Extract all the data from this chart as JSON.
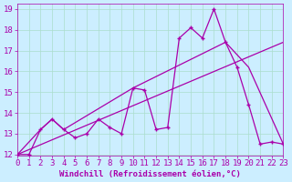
{
  "background_color": "#cceeff",
  "line_color": "#aa00aa",
  "xlabel": "Windchill (Refroidissement éolien,°C)",
  "xlabel_color": "#aa00aa",
  "xmin": 0,
  "xmax": 23,
  "ymin": 12,
  "ymax": 19,
  "yticks": [
    12,
    13,
    14,
    15,
    16,
    17,
    18,
    19
  ],
  "xticks": [
    0,
    1,
    2,
    3,
    4,
    5,
    6,
    7,
    8,
    9,
    10,
    11,
    12,
    13,
    14,
    15,
    16,
    17,
    18,
    19,
    20,
    21,
    22,
    23
  ],
  "line1_x": [
    0,
    1,
    2,
    3,
    4,
    5,
    6,
    7,
    8,
    9,
    10,
    11,
    12,
    13,
    14,
    15,
    16,
    17,
    18,
    19,
    20,
    21,
    22,
    23
  ],
  "line1_y": [
    12.0,
    12.0,
    13.2,
    13.7,
    13.2,
    12.8,
    13.0,
    13.7,
    13.3,
    13.0,
    15.2,
    15.1,
    13.2,
    13.3,
    17.6,
    18.1,
    17.6,
    19.0,
    17.4,
    16.2,
    14.4,
    12.5,
    12.6,
    12.5
  ],
  "line2_x": [
    0,
    2,
    3,
    4,
    10,
    18,
    20,
    23
  ],
  "line2_y": [
    12.0,
    13.2,
    13.7,
    13.2,
    15.2,
    17.4,
    16.2,
    12.5
  ],
  "line3_x": [
    0,
    23
  ],
  "line3_y": [
    12.0,
    17.4
  ],
  "grid_color": "#aaddcc",
  "tick_color": "#aa00aa",
  "tick_fontsize": 6.5
}
